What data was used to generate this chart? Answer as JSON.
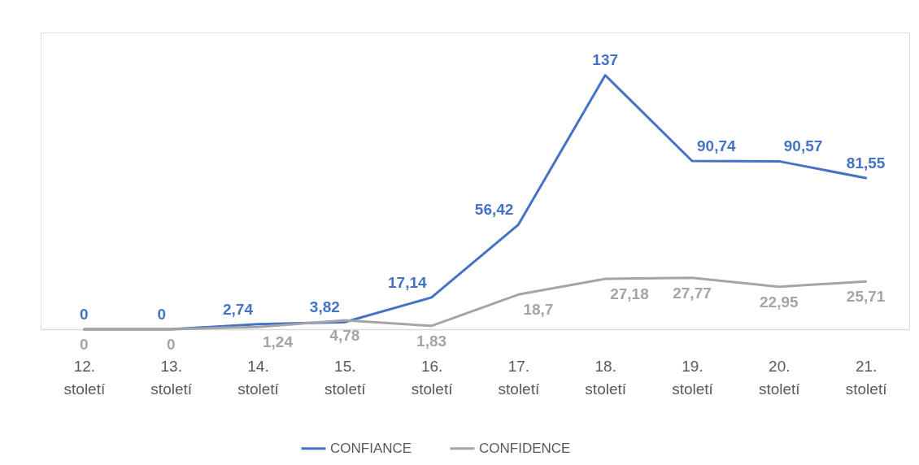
{
  "chart_data": {
    "type": "line",
    "categories": [
      "12. století",
      "13. století",
      "14. století",
      "15. století",
      "16. století",
      "17. století",
      "18. století",
      "19. století",
      "20. století",
      "21. století"
    ],
    "series": [
      {
        "name": "CONFIANCE",
        "color": "#4472c4",
        "values": [
          0,
          0,
          2.74,
          3.82,
          17.14,
          56.42,
          137,
          90.74,
          90.57,
          81.55
        ],
        "value_labels": [
          "0",
          "0",
          "2,74",
          "3,82",
          "17,14",
          "56,42",
          "137",
          "90,74",
          "90,57",
          "81,55"
        ]
      },
      {
        "name": "CONFIDENCE",
        "color": "#a5a5a5",
        "values": [
          0,
          0,
          1.24,
          4.78,
          1.83,
          18.7,
          27.18,
          27.77,
          22.95,
          25.71
        ],
        "value_labels": [
          "0",
          "0",
          "1,24",
          "4,78",
          "1,83",
          "18,7",
          "27,18",
          "27,77",
          "22,95",
          "25,71"
        ]
      }
    ],
    "ylim": [
      0,
      160
    ],
    "tick_labels": "x",
    "legend": "bottom",
    "line_style": "solid"
  }
}
